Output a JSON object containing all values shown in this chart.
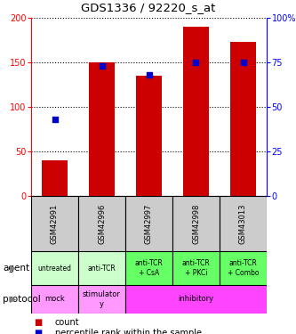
{
  "title": "GDS1336 / 92220_s_at",
  "samples": [
    "GSM42991",
    "GSM42996",
    "GSM42997",
    "GSM42998",
    "GSM43013"
  ],
  "counts": [
    40,
    150,
    135,
    190,
    173
  ],
  "percentile_ranks": [
    43,
    73,
    68,
    75,
    75
  ],
  "agent_labels": [
    "untreated",
    "anti-TCR",
    "anti-TCR\n+ CsA",
    "anti-TCR\n+ PKCi",
    "anti-TCR\n+ Combo"
  ],
  "agent_colors": [
    "#ccffcc",
    "#ccffcc",
    "#66ff66",
    "#66ff66",
    "#66ff66"
  ],
  "protocol_spans": [
    {
      "label": "mock",
      "start": 0,
      "end": 1,
      "color": "#ff99ff"
    },
    {
      "label": "stimulator\ny",
      "start": 1,
      "end": 2,
      "color": "#ff99ff"
    },
    {
      "label": "inhibitory",
      "start": 2,
      "end": 5,
      "color": "#ff44ff"
    }
  ],
  "bar_color": "#cc0000",
  "dot_color": "#0000cc",
  "ylim_left": [
    0,
    200
  ],
  "ylim_right": [
    0,
    100
  ],
  "yticks_left": [
    0,
    50,
    100,
    150,
    200
  ],
  "yticks_right": [
    0,
    25,
    50,
    75,
    100
  ],
  "ytick_labels_right": [
    "0",
    "25",
    "50",
    "75",
    "100%"
  ],
  "sample_bg": "#cccccc",
  "agent_bg_light": "#ccffcc",
  "agent_bg_dark": "#66ff66",
  "protocol_mock_color": "#ff99ff",
  "protocol_inhib_color": "#ff44ff"
}
